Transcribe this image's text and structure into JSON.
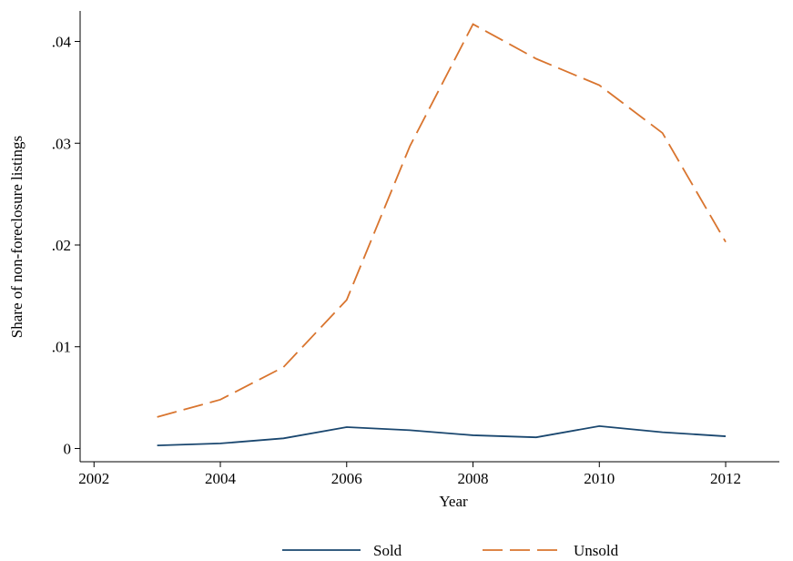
{
  "chart_data": {
    "type": "line",
    "x_label": "Year",
    "y_label": "Share of non-foreclosure listings",
    "x": [
      2003,
      2004,
      2005,
      2006,
      2007,
      2008,
      2009,
      2010,
      2011,
      2012
    ],
    "series": [
      {
        "name": "Sold",
        "color": "#1a476f",
        "dash": false,
        "values": [
          0.0003,
          0.0005,
          0.001,
          0.0021,
          0.0018,
          0.0013,
          0.0011,
          0.0022,
          0.0016,
          0.0012
        ]
      },
      {
        "name": "Unsold",
        "color": "#d9752f",
        "dash": true,
        "values": [
          0.0031,
          0.0048,
          0.008,
          0.0146,
          0.0297,
          0.0417,
          0.0383,
          0.0357,
          0.031,
          0.0203
        ]
      }
    ],
    "xlim": [
      2001.78,
      2012.85
    ],
    "xticks": [
      2002,
      2004,
      2006,
      2008,
      2010,
      2012
    ],
    "ylim": [
      -0.0013,
      0.043
    ],
    "yticks": [
      0,
      {
        "value": 0.01,
        "label": ".01"
      },
      {
        "value": 0.02,
        "label": ".02"
      },
      {
        "value": 0.03,
        "label": ".03"
      },
      {
        "value": 0.04,
        "label": ".04"
      }
    ],
    "legend": "bottom"
  }
}
